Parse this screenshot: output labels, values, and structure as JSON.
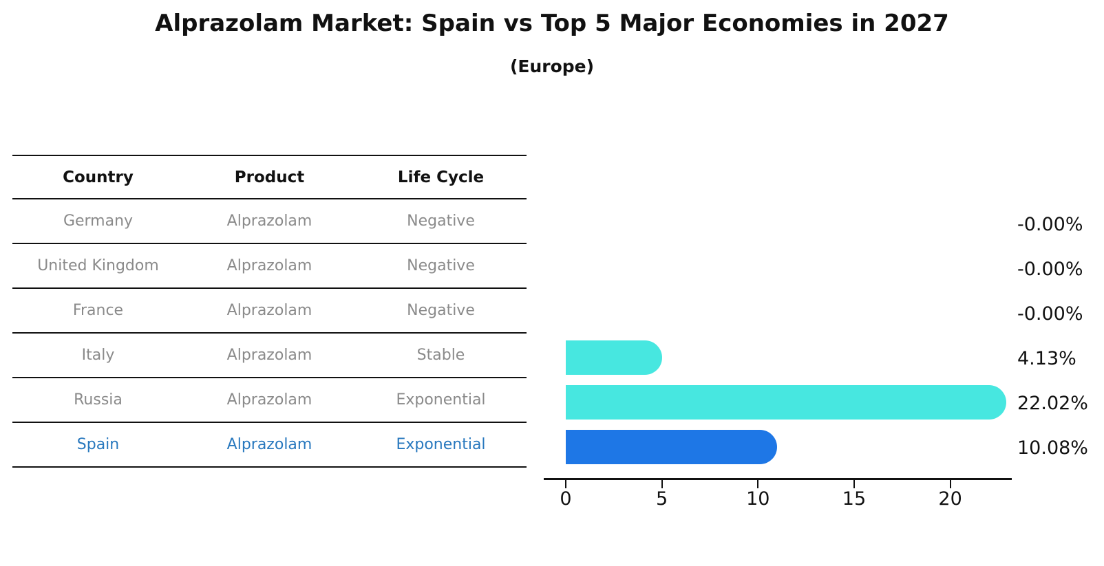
{
  "title": "Alprazolam Market: Spain vs Top 5 Major Economies in 2027",
  "subtitle": "(Europe)",
  "table": {
    "headers": {
      "country": "Country",
      "product": "Product",
      "life_cycle": "Life Cycle"
    },
    "rows": [
      {
        "country": "Germany",
        "product": "Alprazolam",
        "life_cycle": "Negative",
        "highlight": false
      },
      {
        "country": "United Kingdom",
        "product": "Alprazolam",
        "life_cycle": "Negative",
        "highlight": false
      },
      {
        "country": "France",
        "product": "Alprazolam",
        "life_cycle": "Negative",
        "highlight": false
      },
      {
        "country": "Italy",
        "product": "Alprazolam",
        "life_cycle": "Stable",
        "highlight": false
      },
      {
        "country": "Russia",
        "product": "Alprazolam",
        "life_cycle": "Exponential",
        "highlight": false
      },
      {
        "country": "Spain",
        "product": "Alprazolam",
        "life_cycle": "Exponential",
        "highlight": true
      }
    ]
  },
  "chart_data": {
    "type": "bar",
    "orientation": "horizontal",
    "title": "Alprazolam Market: Spain vs Top 5 Major Economies in 2027",
    "subtitle": "(Europe)",
    "categories": [
      "Germany",
      "United Kingdom",
      "France",
      "Italy",
      "Russia",
      "Spain"
    ],
    "values": [
      -0.0,
      -0.0,
      -0.0,
      4.13,
      22.02,
      10.08
    ],
    "value_labels": [
      "-0.00%",
      "-0.00%",
      "-0.00%",
      "4.13%",
      "22.02%",
      "10.08%"
    ],
    "unit": "percent",
    "xticks": [
      0,
      5,
      10,
      15,
      20
    ],
    "xlim": [
      0,
      23.2
    ],
    "grid": false,
    "legend": false,
    "bar_colors": [
      null,
      null,
      null,
      "#47e7e0",
      "#47e7e0",
      "#1e77e6"
    ],
    "highlight_category": "Spain"
  },
  "colors": {
    "cyan_bar": "#47e7e0",
    "blue_bar": "#1e77e6",
    "highlight_text": "#2878be",
    "muted_text": "#8a8a8a",
    "axis_line": "#111111",
    "label_text": "#111111"
  }
}
